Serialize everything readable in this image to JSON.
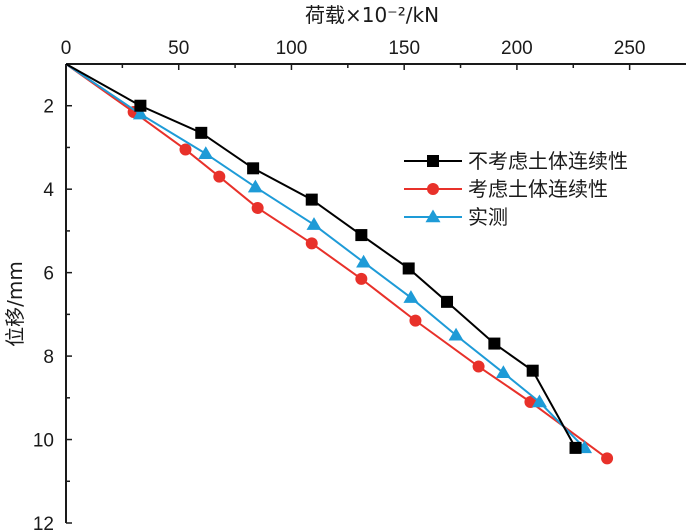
{
  "chart_data": {
    "type": "line",
    "title": "",
    "xlabel": "荷载×10⁻²/kN",
    "ylabel": "位移/mm",
    "x_axis_position": "top",
    "y_inverted": true,
    "xlim": [
      0,
      275
    ],
    "ylim": [
      1,
      12
    ],
    "x_ticks": [
      0,
      50,
      100,
      150,
      200,
      250
    ],
    "y_ticks": [
      2,
      4,
      6,
      8,
      10,
      12
    ],
    "grid": false,
    "legend_position": "right",
    "series": [
      {
        "name": "不考虑土体连续性",
        "color": "#000000",
        "marker": "square",
        "x": [
          0,
          33,
          60,
          83,
          109,
          131,
          152,
          169,
          190,
          207,
          226
        ],
        "y": [
          1,
          2,
          2.65,
          3.5,
          4.25,
          5.1,
          5.9,
          6.7,
          7.7,
          8.35,
          10.2
        ]
      },
      {
        "name": "考虑土体连续性",
        "color": "#e8312a",
        "marker": "circle",
        "x": [
          0,
          30,
          53,
          68,
          85,
          109,
          131,
          155,
          183,
          206,
          240
        ],
        "y": [
          1,
          2.15,
          3.05,
          3.7,
          4.45,
          5.3,
          6.15,
          7.15,
          8.25,
          9.1,
          10.45
        ]
      },
      {
        "name": "实测",
        "color": "#1e9bd7",
        "marker": "triangle",
        "x": [
          0,
          33,
          62,
          84,
          110,
          132,
          153,
          173,
          194,
          210,
          230
        ],
        "y": [
          1,
          2.2,
          3.15,
          3.95,
          4.85,
          5.75,
          6.6,
          7.5,
          8.4,
          9.1,
          10.2
        ]
      }
    ]
  }
}
